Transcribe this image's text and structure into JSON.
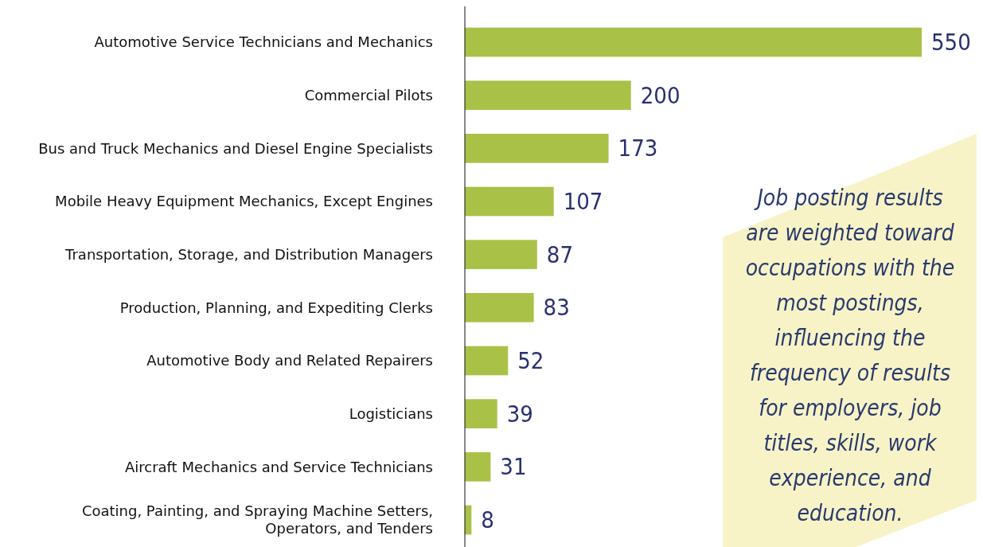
{
  "chart_data": {
    "type": "bar",
    "orientation": "horizontal",
    "categories": [
      "Automotive Service Technicians and Mechanics",
      "Commercial Pilots",
      "Bus and Truck Mechanics and Diesel Engine Specialists",
      "Mobile Heavy Equipment Mechanics, Except Engines",
      "Transportation, Storage, and Distribution Managers",
      "Production, Planning, and Expediting Clerks",
      "Automotive Body and Related Repairers",
      "Logisticians",
      "Aircraft Mechanics and Service Technicians",
      "Coating, Painting, and Spraying Machine Setters, Operators, and Tenders"
    ],
    "values": [
      550,
      200,
      173,
      107,
      87,
      83,
      52,
      39,
      31,
      8
    ],
    "color": "#aac148",
    "data_labels": true,
    "annotations": [
      "Job posting results are weighted toward occupations with the most postings, influencing the frequency of results for employers, job titles, skills, work experience, and education."
    ]
  }
}
